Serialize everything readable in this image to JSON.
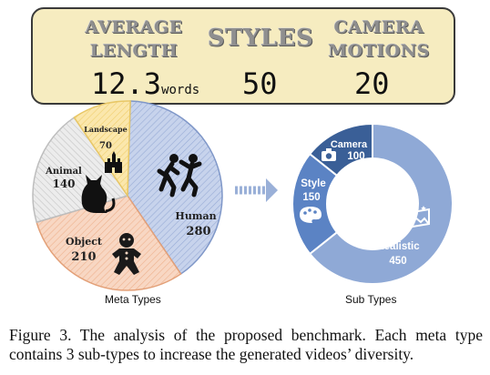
{
  "stats": {
    "average_length": {
      "title_line1": "AVERAGE",
      "title_line2": "LENGTH",
      "value": "12.3",
      "unit": "words"
    },
    "styles": {
      "title": "STYLES",
      "value": "50"
    },
    "camera_motions": {
      "title_line1": "CAMERA",
      "title_line2": "MOTIONS",
      "value": "20"
    }
  },
  "chart_data": [
    {
      "type": "pie",
      "caption": "Meta Types",
      "slices": [
        {
          "name": "Human",
          "value": 280,
          "label": "Human",
          "value_label": "280",
          "color": "#c7d3ec",
          "stroke": "#7f97c8",
          "icon": "dancing-people-icon"
        },
        {
          "name": "Object",
          "value": 210,
          "label": "Object",
          "value_label": "210",
          "color": "#f7d2bd",
          "stroke": "#e3a078",
          "icon": "gingerbread-man-icon"
        },
        {
          "name": "Animal",
          "value": 140,
          "label": "Animal",
          "value_label": "140",
          "color": "#e8e8e8",
          "stroke": "#bdbdbd",
          "icon": "cat-icon"
        },
        {
          "name": "Landscape",
          "value": 70,
          "label": "Landscape",
          "value_label": "70",
          "color": "#fbe6a8",
          "stroke": "#e8c766",
          "icon": "castle-icon"
        }
      ]
    },
    {
      "type": "pie",
      "subtype": "donut",
      "caption": "Sub Types",
      "slices": [
        {
          "name": "Realistic",
          "value": 450,
          "label": "Realistic",
          "value_label": "450",
          "color": "#8fa9d6",
          "icon": "landscape-picture-icon"
        },
        {
          "name": "Style",
          "value": 150,
          "label": "Style",
          "value_label": "150",
          "color": "#5b83c4",
          "icon": "palette-icon"
        },
        {
          "name": "Camera",
          "value": 100,
          "label": "Camera",
          "value_label": "100",
          "color": "#3a5f97",
          "icon": "camera-icon"
        }
      ]
    }
  ],
  "figure_caption": "Figure 3. The analysis of the proposed benchmark. Each meta type contains 3 sub-types to increase the generated videos’ diversity."
}
